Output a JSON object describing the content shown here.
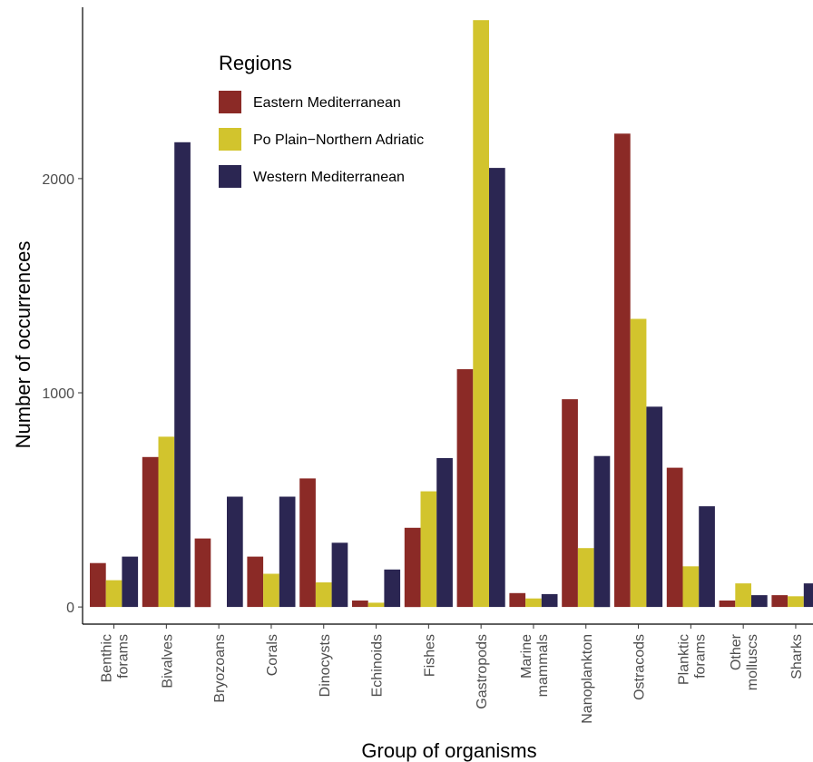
{
  "chart_data": {
    "type": "bar",
    "title": "",
    "xlabel": "Group of organisms",
    "ylabel": "Number of occurrences",
    "ylim": [
      -80,
      2800
    ],
    "yticks": [
      0,
      1000,
      2000
    ],
    "grid": false,
    "legend": {
      "title": "Regions",
      "placement": "top-left inside"
    },
    "categories": [
      [
        "Benthic",
        "forams"
      ],
      [
        "Bivalves"
      ],
      [
        "Bryozoans"
      ],
      [
        "Corals"
      ],
      [
        "Dinocysts"
      ],
      [
        "Echinoids"
      ],
      [
        "Fishes"
      ],
      [
        "Gastropods"
      ],
      [
        "Marine",
        "mammals"
      ],
      [
        "Nanoplankton"
      ],
      [
        "Ostracods"
      ],
      [
        "Planktic",
        "forams"
      ],
      [
        "Other",
        "molluscs"
      ],
      [
        "Sharks"
      ]
    ],
    "series": [
      {
        "name": "Eastern Mediterranean",
        "color": "#8b2a26",
        "values": [
          205,
          700,
          320,
          235,
          600,
          30,
          370,
          1110,
          65,
          970,
          2210,
          650,
          30,
          55
        ]
      },
      {
        "name": "Po Plain−Northern Adriatic",
        "color": "#d2c42d",
        "values": [
          125,
          795,
          0,
          155,
          115,
          20,
          540,
          2740,
          40,
          275,
          1345,
          190,
          110,
          50
        ]
      },
      {
        "name": "Western Mediterranean",
        "color": "#2b2652",
        "values": [
          235,
          2170,
          515,
          515,
          300,
          175,
          695,
          2050,
          60,
          705,
          935,
          470,
          55,
          110
        ]
      }
    ]
  }
}
